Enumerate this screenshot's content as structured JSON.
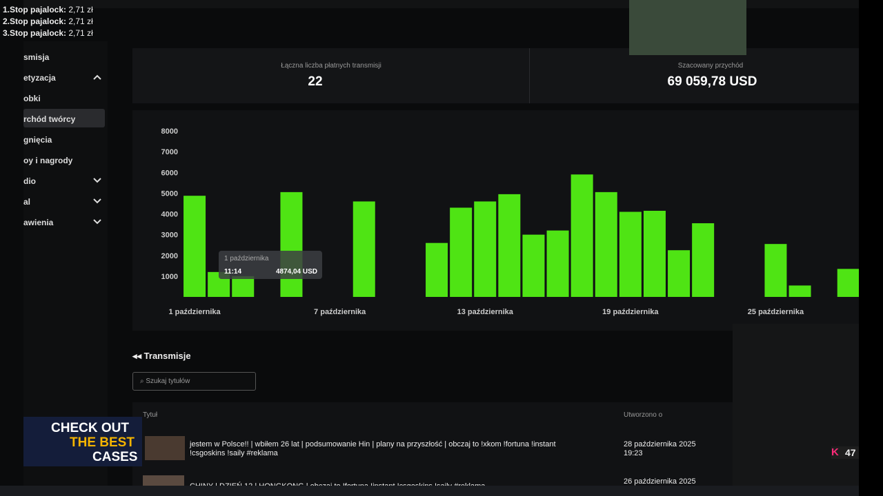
{
  "overlay": {
    "donations": [
      "1.Stop pajalock:",
      "2.Stop pajalock:",
      "3.Stop pajalock:"
    ],
    "amounts": [
      "2,71 zł",
      "2,71 zł",
      "2,71 zł"
    ]
  },
  "sidebar": {
    "items": [
      "smisja",
      "etyzacja",
      "obki",
      "rchód twórcy",
      "gnięcia",
      "oy i nagrody",
      "dio",
      "al",
      "awienia"
    ]
  },
  "stats": [
    {
      "label": "Łączna liczba płatnych transmisji",
      "value": "22"
    },
    {
      "label": "Szacowany przychód",
      "value": "69 059,78 USD"
    }
  ],
  "chart_data": {
    "type": "bar",
    "categories": [
      "1 października",
      null,
      null,
      null,
      null,
      null,
      "7 października",
      null,
      null,
      null,
      null,
      null,
      "13 października",
      null,
      null,
      null,
      null,
      null,
      "19 października",
      null,
      null,
      null,
      null,
      null,
      "25 października",
      null,
      null,
      null
    ],
    "values": [
      4874.04,
      1200,
      1000,
      null,
      5050,
      null,
      null,
      4600,
      null,
      null,
      2600,
      4300,
      4600,
      4950,
      3000,
      3200,
      5900,
      5050,
      4100,
      4150,
      2250,
      3550,
      null,
      null,
      2550,
      550,
      null,
      1350
    ],
    "color": "#4fe414",
    "ylim": [
      0,
      8000
    ],
    "yticks": [
      1000,
      2000,
      3000,
      4000,
      5000,
      6000,
      7000,
      8000
    ],
    "tooltip": {
      "date": "1 października",
      "time": "11:14",
      "amount": "4874,04 USD"
    }
  },
  "streams": {
    "title": "Transmisje",
    "search": "Szukaj tytułów",
    "columns": [
      "Tytuł",
      "Utworzono o"
    ],
    "rows": [
      [
        "jestem w Polsce!! | wbiłem 26 lat | podsumowanie Hin | plany na przyszłość | obczaj to !xkom !fortuna !instant",
        "!csgoskins !saily #reklama",
        "28 października 2025",
        "19:23"
      ],
      [
        "CHINY | DZIEŃ 12 | HONGKONG | obczaj to !fortuna !instant !csgoskins !saily #reklama",
        "",
        "26 października 2025",
        ""
      ]
    ]
  },
  "promo": [
    "CHECK OUT",
    "THE BEST",
    "CASES"
  ],
  "viewers": "47"
}
